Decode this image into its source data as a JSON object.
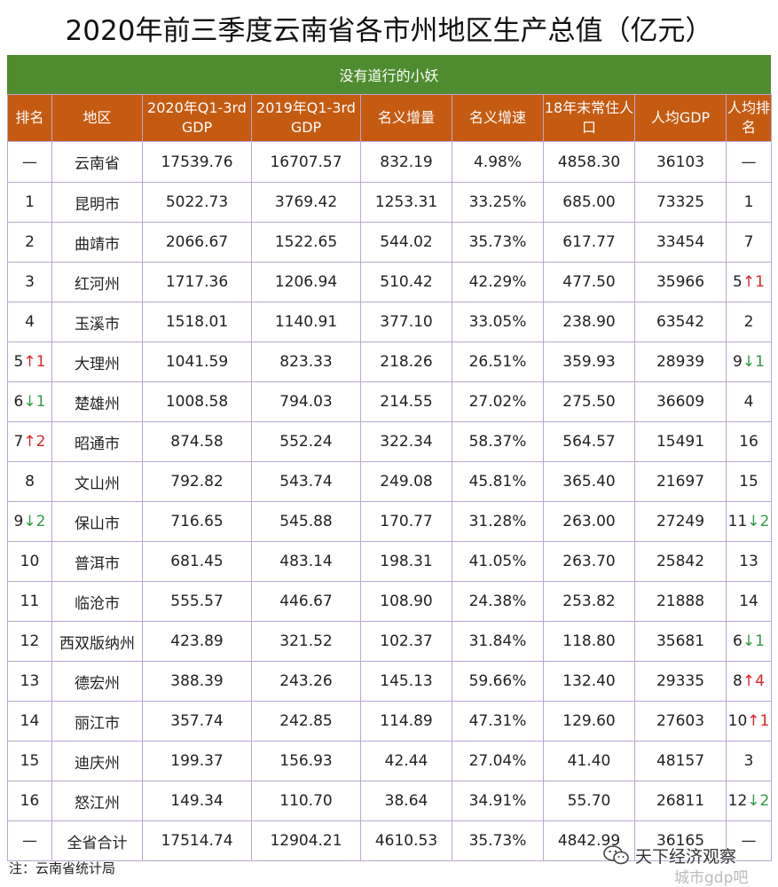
{
  "title": "2020年前三季度云南省各市州地区生产总值（亿元）",
  "subtitle": "没有道行的小妖",
  "headers": {
    "rank": "排名",
    "region": "地区",
    "gdp2020": "2020年Q1-3rd GDP",
    "gdp2019": "2019年Q1-3rd GDP",
    "nominal_increase": "名义增量",
    "nominal_growth": "名义增速",
    "population": "18年末常住人口",
    "per_capita": "人均GDP",
    "per_capita_rank": "人均排名"
  },
  "rows": [
    {
      "rank": "—",
      "rank_arrow": "",
      "rank_change": "",
      "region": "云南省",
      "gdp2020": "17539.76",
      "gdp2019": "16707.57",
      "inc": "832.19",
      "growth": "4.98%",
      "pop": "4858.30",
      "pcgdp": "36103",
      "pcrank": "—",
      "pc_arrow": "",
      "pc_change": ""
    },
    {
      "rank": "1",
      "rank_arrow": "",
      "rank_change": "",
      "region": "昆明市",
      "gdp2020": "5022.73",
      "gdp2019": "3769.42",
      "inc": "1253.31",
      "growth": "33.25%",
      "pop": "685.00",
      "pcgdp": "73325",
      "pcrank": "1",
      "pc_arrow": "",
      "pc_change": ""
    },
    {
      "rank": "2",
      "rank_arrow": "",
      "rank_change": "",
      "region": "曲靖市",
      "gdp2020": "2066.67",
      "gdp2019": "1522.65",
      "inc": "544.02",
      "growth": "35.73%",
      "pop": "617.77",
      "pcgdp": "33454",
      "pcrank": "7",
      "pc_arrow": "",
      "pc_change": ""
    },
    {
      "rank": "3",
      "rank_arrow": "",
      "rank_change": "",
      "region": "红河州",
      "gdp2020": "1717.36",
      "gdp2019": "1206.94",
      "inc": "510.42",
      "growth": "42.29%",
      "pop": "477.50",
      "pcgdp": "35966",
      "pcrank": "5",
      "pc_arrow": "↑",
      "pc_change": "1"
    },
    {
      "rank": "4",
      "rank_arrow": "",
      "rank_change": "",
      "region": "玉溪市",
      "gdp2020": "1518.01",
      "gdp2019": "1140.91",
      "inc": "377.10",
      "growth": "33.05%",
      "pop": "238.90",
      "pcgdp": "63542",
      "pcrank": "2",
      "pc_arrow": "",
      "pc_change": ""
    },
    {
      "rank": "5",
      "rank_arrow": "↑",
      "rank_change": "1",
      "region": "大理州",
      "gdp2020": "1041.59",
      "gdp2019": "823.33",
      "inc": "218.26",
      "growth": "26.51%",
      "pop": "359.93",
      "pcgdp": "28939",
      "pcrank": "9",
      "pc_arrow": "↓",
      "pc_change": "1"
    },
    {
      "rank": "6",
      "rank_arrow": "↓",
      "rank_change": "1",
      "region": "楚雄州",
      "gdp2020": "1008.58",
      "gdp2019": "794.03",
      "inc": "214.55",
      "growth": "27.02%",
      "pop": "275.50",
      "pcgdp": "36609",
      "pcrank": "4",
      "pc_arrow": "",
      "pc_change": ""
    },
    {
      "rank": "7",
      "rank_arrow": "↑",
      "rank_change": "2",
      "region": "昭通市",
      "gdp2020": "874.58",
      "gdp2019": "552.24",
      "inc": "322.34",
      "growth": "58.37%",
      "pop": "564.57",
      "pcgdp": "15491",
      "pcrank": "16",
      "pc_arrow": "",
      "pc_change": ""
    },
    {
      "rank": "8",
      "rank_arrow": "",
      "rank_change": "",
      "region": "文山州",
      "gdp2020": "792.82",
      "gdp2019": "543.74",
      "inc": "249.08",
      "growth": "45.81%",
      "pop": "365.40",
      "pcgdp": "21697",
      "pcrank": "15",
      "pc_arrow": "",
      "pc_change": ""
    },
    {
      "rank": "9",
      "rank_arrow": "↓",
      "rank_change": "2",
      "region": "保山市",
      "gdp2020": "716.65",
      "gdp2019": "545.88",
      "inc": "170.77",
      "growth": "31.28%",
      "pop": "263.00",
      "pcgdp": "27249",
      "pcrank": "11",
      "pc_arrow": "↓",
      "pc_change": "2"
    },
    {
      "rank": "10",
      "rank_arrow": "",
      "rank_change": "",
      "region": "普洱市",
      "gdp2020": "681.45",
      "gdp2019": "483.14",
      "inc": "198.31",
      "growth": "41.05%",
      "pop": "263.70",
      "pcgdp": "25842",
      "pcrank": "13",
      "pc_arrow": "",
      "pc_change": ""
    },
    {
      "rank": "11",
      "rank_arrow": "",
      "rank_change": "",
      "region": "临沧市",
      "gdp2020": "555.57",
      "gdp2019": "446.67",
      "inc": "108.90",
      "growth": "24.38%",
      "pop": "253.82",
      "pcgdp": "21888",
      "pcrank": "14",
      "pc_arrow": "",
      "pc_change": ""
    },
    {
      "rank": "12",
      "rank_arrow": "",
      "rank_change": "",
      "region": "西双版纳州",
      "gdp2020": "423.89",
      "gdp2019": "321.52",
      "inc": "102.37",
      "growth": "31.84%",
      "pop": "118.80",
      "pcgdp": "35681",
      "pcrank": "6",
      "pc_arrow": "↓",
      "pc_change": "1"
    },
    {
      "rank": "13",
      "rank_arrow": "",
      "rank_change": "",
      "region": "德宏州",
      "gdp2020": "388.39",
      "gdp2019": "243.26",
      "inc": "145.13",
      "growth": "59.66%",
      "pop": "132.40",
      "pcgdp": "29335",
      "pcrank": "8",
      "pc_arrow": "↑",
      "pc_change": "4"
    },
    {
      "rank": "14",
      "rank_arrow": "",
      "rank_change": "",
      "region": "丽江市",
      "gdp2020": "357.74",
      "gdp2019": "242.85",
      "inc": "114.89",
      "growth": "47.31%",
      "pop": "129.60",
      "pcgdp": "27603",
      "pcrank": "10",
      "pc_arrow": "↑",
      "pc_change": "1"
    },
    {
      "rank": "15",
      "rank_arrow": "",
      "rank_change": "",
      "region": "迪庆州",
      "gdp2020": "199.37",
      "gdp2019": "156.93",
      "inc": "42.44",
      "growth": "27.04%",
      "pop": "41.40",
      "pcgdp": "48157",
      "pcrank": "3",
      "pc_arrow": "",
      "pc_change": ""
    },
    {
      "rank": "16",
      "rank_arrow": "",
      "rank_change": "",
      "region": "怒江州",
      "gdp2020": "149.34",
      "gdp2019": "110.70",
      "inc": "38.64",
      "growth": "34.91%",
      "pop": "55.70",
      "pcgdp": "26811",
      "pcrank": "12",
      "pc_arrow": "↓",
      "pc_change": "2"
    },
    {
      "rank": "—",
      "rank_arrow": "",
      "rank_change": "",
      "region": "全省合计",
      "gdp2020": "17514.74",
      "gdp2019": "12904.21",
      "inc": "4610.53",
      "growth": "35.73%",
      "pop": "4842.99",
      "pcgdp": "36165",
      "pcrank": "—",
      "pc_arrow": "",
      "pc_change": ""
    }
  ],
  "note": "注：云南省统计局",
  "watermark": "天下经济观察",
  "watermark2": "城市gdp吧",
  "colors": {
    "header_bg": "#c55a11",
    "subtitle_bg": "#4f8c2f",
    "gdp_text": "#9c4a10",
    "arrow_up": "#d9262b",
    "arrow_down": "#2e9a45",
    "grid": "#b9a7d0"
  }
}
